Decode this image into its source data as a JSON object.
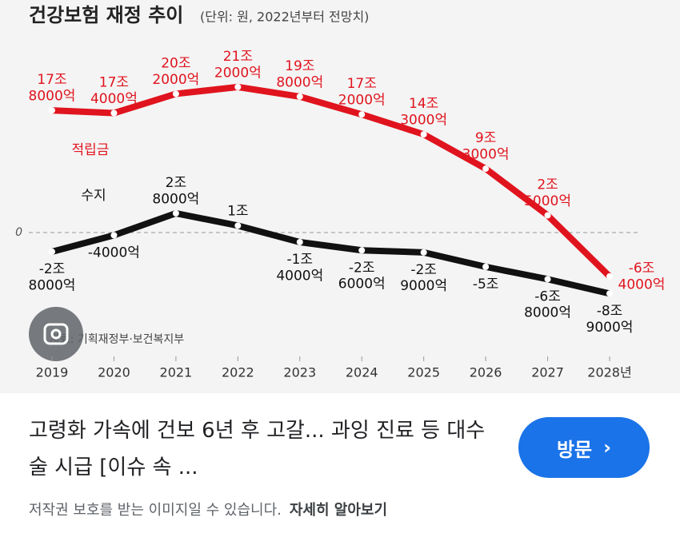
{
  "chart_data": {
    "type": "line",
    "title": "건강보험 재정 추이",
    "subtitle": "(단위: 원, 2022년부터 전망치)",
    "categories": [
      "2019",
      "2020",
      "2021",
      "2022",
      "2023",
      "2024",
      "2025",
      "2026",
      "2027",
      "2028년"
    ],
    "series": [
      {
        "name": "적립금",
        "color": "#e0141e",
        "values": [
          17.8,
          17.4,
          20.2,
          21.2,
          19.8,
          17.2,
          14.3,
          9.3,
          2.5,
          -6.4
        ],
        "value_labels": [
          "17조 8000억",
          "17조 4000억",
          "20조 2000억",
          "21조 2000억",
          "19조 8000억",
          "17조 2000억",
          "14조 3000억",
          "9조 3000억",
          "2조 5000억",
          "-6조 4000억"
        ]
      },
      {
        "name": "수지",
        "color": "#111111",
        "values": [
          -2.8,
          -0.4,
          2.8,
          1,
          -1.4,
          -2.6,
          -2.9,
          -5,
          -6.8,
          -8.9
        ],
        "value_labels": [
          "-2조 8000억",
          "-4000억",
          "2조 8000억",
          "1조",
          "-1조 4000억",
          "-2조 6000억",
          "-2조 9000억",
          "-5조",
          "-6조 8000억",
          "-8조 9000억"
        ]
      }
    ],
    "ylim": [
      -12,
      22
    ],
    "yticks": [
      0
    ],
    "grid": true,
    "source": "자료: 기획재정부·보건복지부"
  },
  "caption": {
    "title": "고령화 가속에 건보 6년 후 고갈... 과잉 진료 등 대수술 시급 [이슈 속 ...",
    "button": "방문",
    "notice": "저작권 보호를 받는 이미지일 수 있습니다.",
    "more": "자세히 알아보기"
  }
}
